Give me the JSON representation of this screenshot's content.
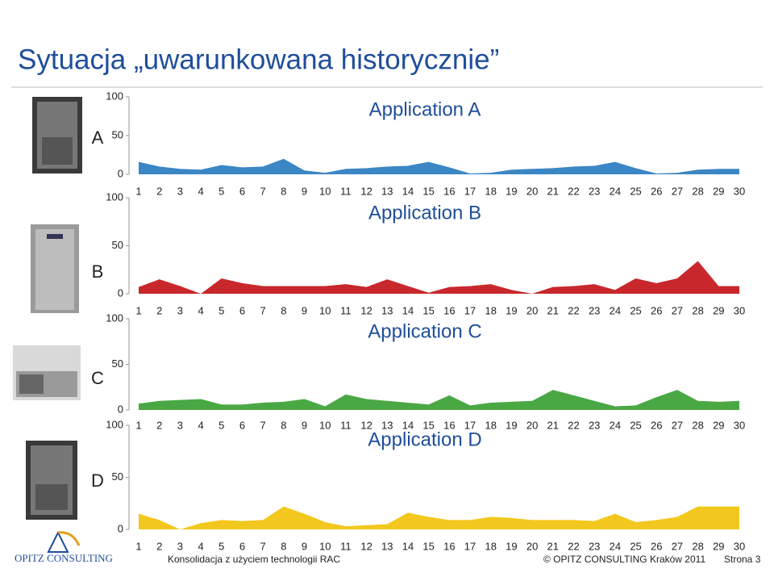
{
  "header": {
    "title": "Sytuacja „uwarunkowana historycznie”"
  },
  "footer": {
    "logo": "OPITZ CONSULTING",
    "left": "Konsolidacja z użyciem technologii RAC",
    "center": "© OPITZ CONSULTING Kraków 2011",
    "right": "Strona 3"
  },
  "chart_data": [
    {
      "type": "area",
      "label": "A",
      "title": "Application A",
      "color": "#3b86c4",
      "categories": [
        1,
        2,
        3,
        4,
        5,
        6,
        7,
        8,
        9,
        10,
        11,
        12,
        13,
        14,
        15,
        16,
        17,
        18,
        19,
        20,
        21,
        22,
        23,
        24,
        25,
        26,
        27,
        28,
        29,
        30
      ],
      "values": [
        16,
        10,
        7,
        6,
        12,
        9,
        10,
        20,
        5,
        2,
        7,
        8,
        10,
        11,
        16,
        9,
        1,
        2,
        6,
        7,
        8,
        10,
        11,
        16,
        8,
        1,
        2,
        6,
        7,
        7
      ],
      "ylim": [
        0,
        100
      ],
      "yticks": [
        0,
        50,
        100
      ]
    },
    {
      "type": "area",
      "label": "B",
      "title": "Application B",
      "color": "#c8282c",
      "categories": [
        1,
        2,
        3,
        4,
        5,
        6,
        7,
        8,
        9,
        10,
        11,
        12,
        13,
        14,
        15,
        16,
        17,
        18,
        19,
        20,
        21,
        22,
        23,
        24,
        25,
        26,
        27,
        28,
        29,
        30
      ],
      "values": [
        7,
        15,
        8,
        0,
        16,
        11,
        8,
        8,
        8,
        8,
        10,
        7,
        15,
        8,
        1,
        7,
        8,
        10,
        4,
        0,
        7,
        8,
        10,
        4,
        16,
        11,
        16,
        34,
        8,
        8
      ],
      "ylim": [
        0,
        100
      ],
      "yticks": [
        0,
        50,
        100
      ]
    },
    {
      "type": "area",
      "label": "C",
      "title": "Application C",
      "color": "#4aa844",
      "categories": [
        1,
        2,
        3,
        4,
        5,
        6,
        7,
        8,
        9,
        10,
        11,
        12,
        13,
        14,
        15,
        16,
        17,
        18,
        19,
        20,
        21,
        22,
        23,
        24,
        25,
        26,
        27,
        28,
        29,
        30
      ],
      "values": [
        7,
        10,
        11,
        12,
        6,
        6,
        8,
        9,
        12,
        4,
        17,
        12,
        10,
        8,
        6,
        16,
        5,
        8,
        9,
        10,
        22,
        16,
        10,
        4,
        5,
        14,
        22,
        10,
        9,
        10
      ],
      "ylim": [
        0,
        100
      ],
      "yticks": [
        0,
        50,
        100
      ]
    },
    {
      "type": "area",
      "label": "D",
      "title": "Application D",
      "color": "#f2c81e",
      "categories": [
        1,
        2,
        3,
        4,
        5,
        6,
        7,
        8,
        9,
        10,
        11,
        12,
        13,
        14,
        15,
        16,
        17,
        18,
        19,
        20,
        21,
        22,
        23,
        24,
        25,
        26,
        27,
        28,
        29,
        30
      ],
      "values": [
        15,
        9,
        0,
        6,
        9,
        8,
        9,
        22,
        15,
        7,
        3,
        4,
        5,
        16,
        12,
        9,
        9,
        12,
        11,
        9,
        9,
        9,
        8,
        15,
        7,
        9,
        12,
        22,
        22,
        22
      ],
      "ylim": [
        0,
        100
      ],
      "yticks": [
        0,
        50,
        100
      ]
    }
  ]
}
